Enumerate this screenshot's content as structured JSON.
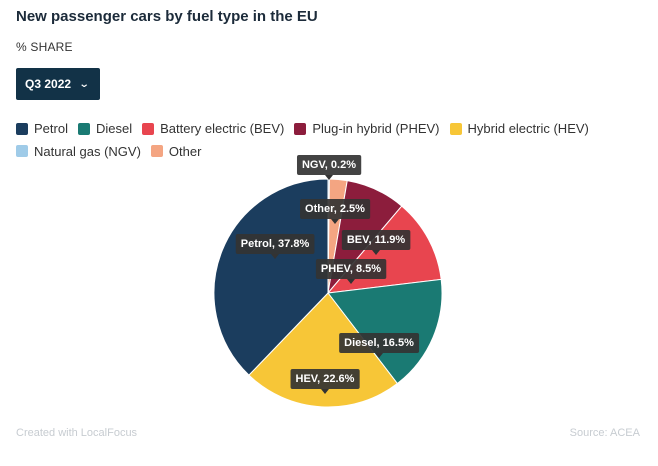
{
  "title": "New passenger cars by fuel type in the EU",
  "subtitle": "% SHARE",
  "dropdown": {
    "selected": "Q3 2022",
    "icon": "chevron-down-icon"
  },
  "footer": {
    "credit": "Created with LocalFocus",
    "source": "Source: ACEA"
  },
  "chart_data": {
    "type": "pie",
    "start_angle_deg": 0,
    "direction": "clockwise",
    "slices": [
      {
        "name": "Natural gas (NGV)",
        "value": 0.2,
        "label": "NGV, 0.2%",
        "color": "#9fcbe8"
      },
      {
        "name": "Other",
        "value": 2.5,
        "label": "Other, 2.5%",
        "color": "#f4a582"
      },
      {
        "name": "Plug-in hybrid (PHEV)",
        "value": 8.5,
        "label": "PHEV, 8.5%",
        "color": "#8c1d3c"
      },
      {
        "name": "Battery electric (BEV)",
        "value": 11.9,
        "label": "BEV, 11.9%",
        "color": "#e8454f"
      },
      {
        "name": "Diesel",
        "value": 16.5,
        "label": "Diesel, 16.5%",
        "color": "#1a7a73"
      },
      {
        "name": "Hybrid electric (HEV)",
        "value": 22.6,
        "label": "HEV, 22.6%",
        "color": "#f7c637"
      },
      {
        "name": "Petrol",
        "value": 37.8,
        "label": "Petrol, 37.8%",
        "color": "#1b3d5e"
      }
    ],
    "legend": [
      {
        "name": "Petrol",
        "color": "#1b3d5e"
      },
      {
        "name": "Diesel",
        "color": "#1a7a73"
      },
      {
        "name": "Battery electric (BEV)",
        "color": "#e8454f"
      },
      {
        "name": "Plug-in hybrid (PHEV)",
        "color": "#8c1d3c"
      },
      {
        "name": "Hybrid electric (HEV)",
        "color": "#f7c637"
      },
      {
        "name": "Natural gas (NGV)",
        "color": "#9fcbe8"
      },
      {
        "name": "Other",
        "color": "#f4a582"
      }
    ]
  }
}
